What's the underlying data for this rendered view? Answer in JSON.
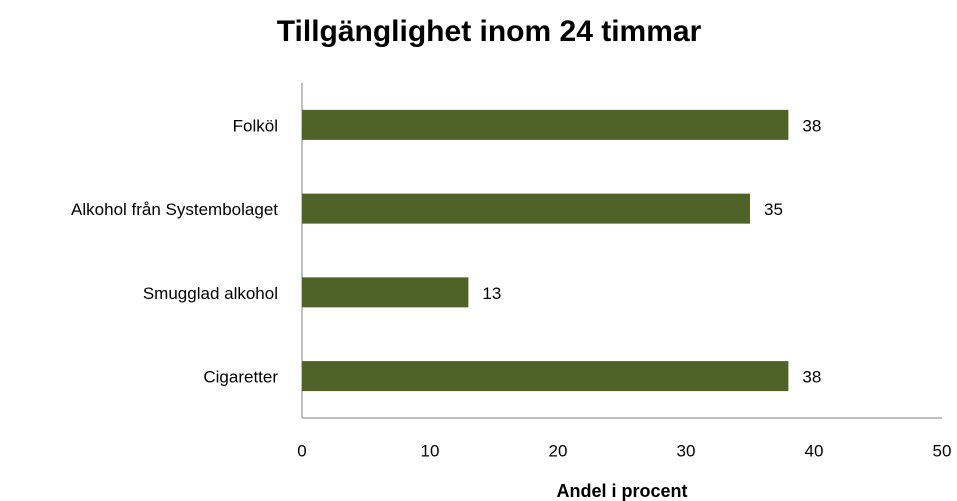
{
  "chart_data": {
    "type": "bar",
    "orientation": "horizontal",
    "title": "Tillgänglighet inom 24 timmar",
    "x_label": "Andel i procent",
    "categories": [
      "Folköl",
      "Alkohol från Systembolaget",
      "Smugglad alkohol",
      "Cigaretter"
    ],
    "values": [
      38,
      35,
      13,
      38
    ],
    "color": "#4f6228",
    "xlim": [
      0,
      50
    ],
    "xticks": [
      0,
      10,
      20,
      30,
      40,
      50
    ],
    "grid": false
  }
}
